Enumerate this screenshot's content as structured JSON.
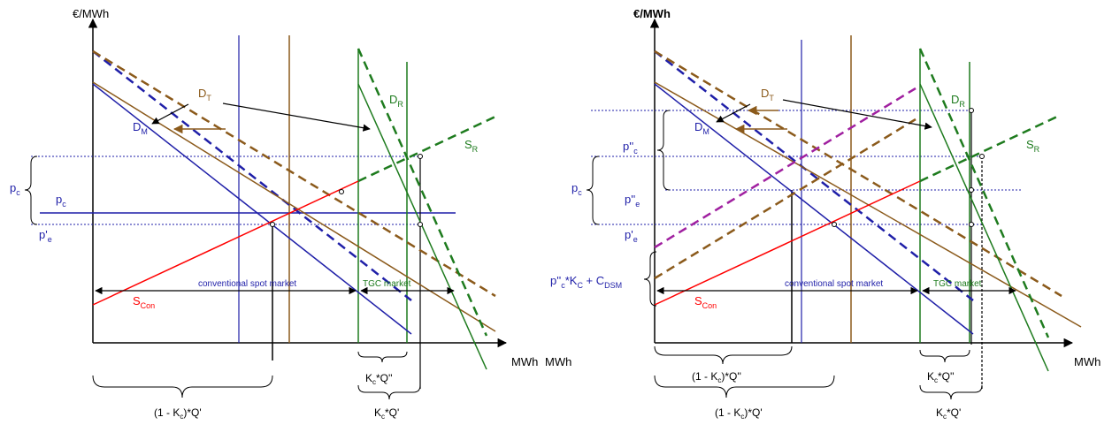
{
  "colors": {
    "black": "#000000",
    "blue": "#1f1fa8",
    "red": "#ff0000",
    "green": "#1e7b1e",
    "brown": "#8b5a1b",
    "purple": "#a020a0"
  },
  "left": {
    "y_axis": "€/MWh",
    "x_axis": "MWh",
    "d_t": "D",
    "d_t_sub": "T",
    "d_m": "D",
    "d_m_sub": "M",
    "d_r": "D",
    "d_r_sub": "R",
    "s_r": "S",
    "s_r_sub": "R",
    "s_con": "S",
    "s_con_sub": "Con",
    "p_c": "p",
    "p_c_sub": "c",
    "p_c2": "p",
    "p_c2_sub": "c",
    "p_e": "p'",
    "p_e_sub": "e",
    "spot": "conventional spot market",
    "tgc": "TGC market",
    "kq2": "K",
    "kq2_sub": "c",
    "kq2_rest": "*Q''",
    "kq1": "K",
    "kq1_sub": "c",
    "kq1_rest": "*Q'",
    "b_lower_pre": "(1 - K",
    "b_lower_sub": "c",
    "b_lower_post": ")*Q'"
  },
  "right": {
    "y_axis": "€/MWh",
    "x_axis": "MWh",
    "d_t": "D",
    "d_t_sub": "T",
    "d_m": "D",
    "d_m_sub": "M",
    "d_r": "D",
    "d_r_sub": "R",
    "s_r": "S",
    "s_r_sub": "R",
    "s_con": "S",
    "s_con_sub": "Con",
    "p_pp_c": "p''",
    "p_pp_c_sub": "c",
    "p_c": "p",
    "p_c_sub": "c",
    "p_pp_e": "p''",
    "p_pp_e_sub": "e",
    "p_e": "p'",
    "p_e_sub": "e",
    "cost_a": "p''",
    "cost_a_sub": "c",
    "cost_b": "*K",
    "cost_b_sub": "C",
    "cost_c": " + C",
    "cost_c_sub": "DSM",
    "spot": "conventional spot market",
    "tgc": "TGC market",
    "b_upper_pre": "(1 - K",
    "b_upper_sub": "c",
    "b_upper_post": ")*Q''",
    "b_lower_pre": "(1 - K",
    "b_lower_sub": "c",
    "b_lower_post": ")*Q'",
    "kq2": "K",
    "kq2_sub": "c",
    "kq2_rest": "*Q''",
    "kq1": "K",
    "kq1_sub": "c",
    "kq1_rest": "*Q'"
  }
}
